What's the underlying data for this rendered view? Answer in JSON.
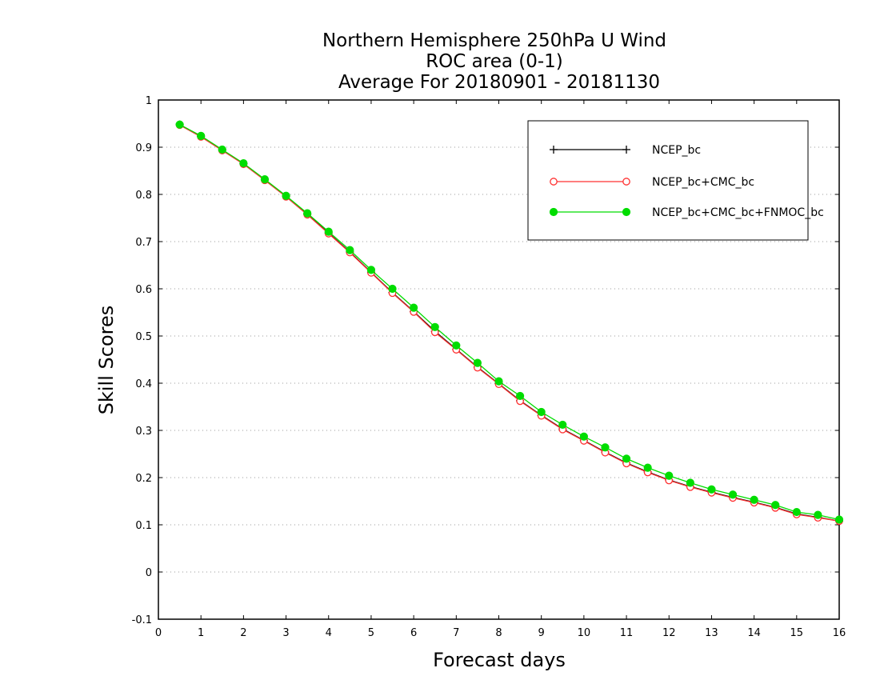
{
  "chart_data": {
    "type": "line",
    "title_lines": [
      "Northern Hemisphere 250hPa U Wind",
      "ROC area (0-1)",
      "Average For 20180901 - 20181130"
    ],
    "xlabel": "Forecast days",
    "ylabel": "Skill Scores",
    "xlim": [
      0,
      16
    ],
    "ylim": [
      -0.1,
      1
    ],
    "x_ticks": [
      0,
      1,
      2,
      3,
      4,
      5,
      6,
      7,
      8,
      9,
      10,
      11,
      12,
      13,
      14,
      15,
      16
    ],
    "y_ticks": [
      -0.1,
      0,
      0.1,
      0.2,
      0.3,
      0.4,
      0.5,
      0.6,
      0.7,
      0.8,
      0.9,
      1
    ],
    "y_tick_labels": [
      "-0.1",
      "0",
      "0.1",
      "0.2",
      "0.3",
      "0.4",
      "0.5",
      "0.6",
      "0.7",
      "0.8",
      "0.9",
      "1"
    ],
    "grid": "horizontal dotted",
    "legend_position": "top-right",
    "x": [
      0.5,
      1,
      1.5,
      2,
      2.5,
      3,
      3.5,
      4,
      4.5,
      5,
      5.5,
      6,
      6.5,
      7,
      7.5,
      8,
      8.5,
      9,
      9.5,
      10,
      10.5,
      11,
      11.5,
      12,
      12.5,
      13,
      13.5,
      14,
      14.5,
      15,
      15.5,
      16
    ],
    "series": [
      {
        "name": "NCEP_bc",
        "color": "#000000",
        "marker": "plus",
        "values": [
          0.948,
          0.923,
          0.894,
          0.865,
          0.831,
          0.796,
          0.758,
          0.718,
          0.678,
          0.635,
          0.592,
          0.552,
          0.51,
          0.472,
          0.434,
          0.399,
          0.363,
          0.332,
          0.303,
          0.279,
          0.254,
          0.231,
          0.212,
          0.195,
          0.181,
          0.169,
          0.158,
          0.148,
          0.137,
          0.123,
          0.116,
          0.108
        ]
      },
      {
        "name": "NCEP_bc+CMC_bc",
        "color": "#ff3030",
        "marker": "open-circle",
        "values": [
          0.947,
          0.922,
          0.893,
          0.864,
          0.83,
          0.795,
          0.757,
          0.717,
          0.677,
          0.634,
          0.591,
          0.551,
          0.508,
          0.471,
          0.433,
          0.398,
          0.362,
          0.331,
          0.302,
          0.278,
          0.253,
          0.23,
          0.211,
          0.194,
          0.18,
          0.168,
          0.157,
          0.147,
          0.136,
          0.122,
          0.115,
          0.108
        ]
      },
      {
        "name": "NCEP_bc+CMC_bc+FNMOC_bc",
        "color": "#00dd00",
        "marker": "filled-circle",
        "values": [
          0.948,
          0.924,
          0.895,
          0.866,
          0.832,
          0.797,
          0.76,
          0.721,
          0.682,
          0.64,
          0.6,
          0.56,
          0.519,
          0.48,
          0.443,
          0.404,
          0.373,
          0.339,
          0.312,
          0.287,
          0.264,
          0.24,
          0.221,
          0.204,
          0.189,
          0.175,
          0.164,
          0.153,
          0.142,
          0.127,
          0.121,
          0.111
        ]
      }
    ]
  }
}
